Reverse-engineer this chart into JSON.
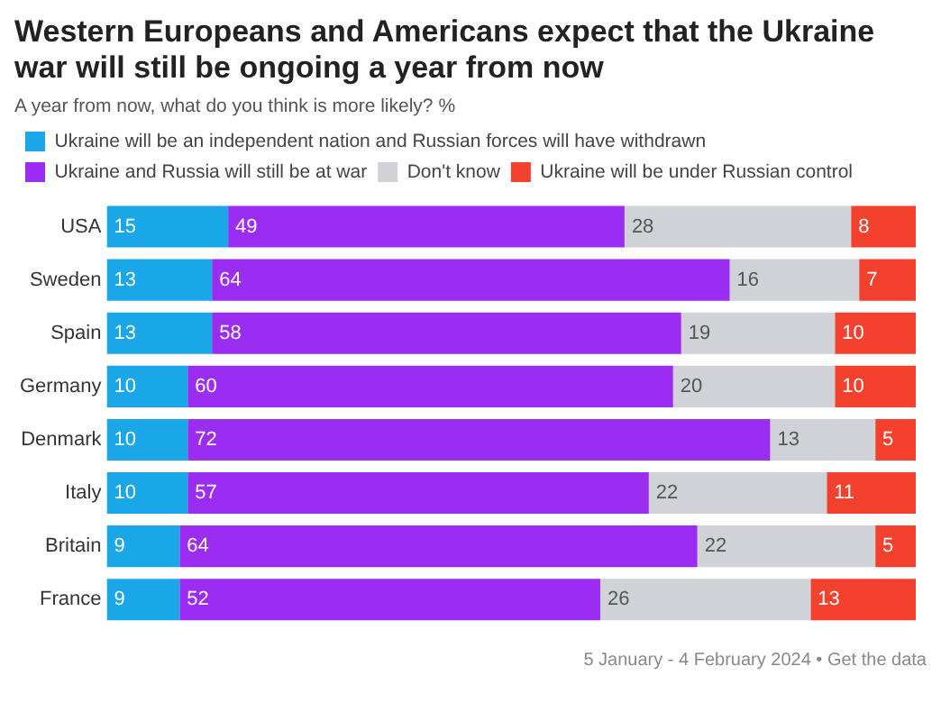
{
  "chart_data": {
    "type": "bar",
    "orientation": "horizontal",
    "stacked": true,
    "data_labels": true,
    "legend": "top",
    "grid": false,
    "title": "Western Europeans and Americans expect that the Ukraine war will still be ongoing a year from now",
    "subtitle": "A year from now, what do you think is more likely? %",
    "categories": [
      "USA",
      "Sweden",
      "Spain",
      "Germany",
      "Denmark",
      "Italy",
      "Britain",
      "France"
    ],
    "series": [
      {
        "name": "Ukraine will be an independent nation and Russian forces will have withdrawn",
        "color": "#19a7e8",
        "values": [
          15,
          13,
          13,
          10,
          10,
          10,
          9,
          9
        ]
      },
      {
        "name": "Ukraine and Russia will still be at war",
        "color": "#9b2cf2",
        "values": [
          49,
          64,
          58,
          60,
          72,
          57,
          64,
          52
        ]
      },
      {
        "name": "Don't know",
        "color": "#d0d2d8",
        "values": [
          28,
          16,
          19,
          20,
          13,
          22,
          22,
          26
        ]
      },
      {
        "name": "Ukraine will be under Russian control",
        "color": "#f4412d",
        "values": [
          8,
          7,
          10,
          10,
          5,
          11,
          5,
          13
        ]
      }
    ],
    "annotations": [
      "5 January - 4 February 2024 • Get the data"
    ]
  }
}
